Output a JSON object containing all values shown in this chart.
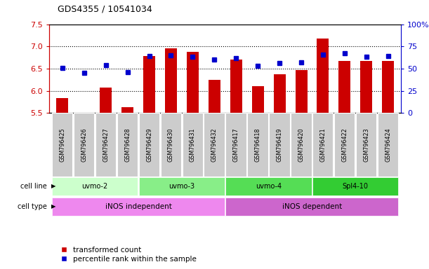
{
  "title": "GDS4355 / 10541034",
  "samples": [
    "GSM796425",
    "GSM796426",
    "GSM796427",
    "GSM796428",
    "GSM796429",
    "GSM796430",
    "GSM796431",
    "GSM796432",
    "GSM796417",
    "GSM796418",
    "GSM796419",
    "GSM796420",
    "GSM796421",
    "GSM796422",
    "GSM796423",
    "GSM796424"
  ],
  "bar_values": [
    5.83,
    5.5,
    6.07,
    5.63,
    6.78,
    6.95,
    6.88,
    6.24,
    6.71,
    6.1,
    6.38,
    6.47,
    7.18,
    6.67,
    6.67,
    6.67
  ],
  "percentile_ranks": [
    51,
    45,
    54,
    46,
    64,
    65,
    63,
    60,
    62,
    53,
    56,
    57,
    66,
    67,
    63,
    64
  ],
  "ylim_left": [
    5.5,
    7.5
  ],
  "ylim_right": [
    0,
    100
  ],
  "yticks_left": [
    5.5,
    6.0,
    6.5,
    7.0,
    7.5
  ],
  "yticks_right": [
    0,
    25,
    50,
    75,
    100
  ],
  "ytick_labels_right": [
    "0",
    "25",
    "50",
    "75",
    "100%"
  ],
  "grid_values": [
    6.0,
    6.5,
    7.0
  ],
  "bar_color": "#cc0000",
  "dot_color": "#0000cc",
  "cell_lines": [
    {
      "label": "uvmo-2",
      "start": 0,
      "end": 3,
      "color": "#ccffcc"
    },
    {
      "label": "uvmo-3",
      "start": 4,
      "end": 7,
      "color": "#88ee88"
    },
    {
      "label": "uvmo-4",
      "start": 8,
      "end": 11,
      "color": "#55dd55"
    },
    {
      "label": "Spl4-10",
      "start": 12,
      "end": 15,
      "color": "#33cc33"
    }
  ],
  "cell_types": [
    {
      "label": "iNOS independent",
      "start": 0,
      "end": 7,
      "color": "#ee88ee"
    },
    {
      "label": "iNOS dependent",
      "start": 8,
      "end": 15,
      "color": "#cc66cc"
    }
  ],
  "left_axis_color": "#cc0000",
  "right_axis_color": "#0000cc",
  "background_color": "#ffffff",
  "sample_label_bg": "#cccccc",
  "legend_items": [
    "transformed count",
    "percentile rank within the sample"
  ]
}
